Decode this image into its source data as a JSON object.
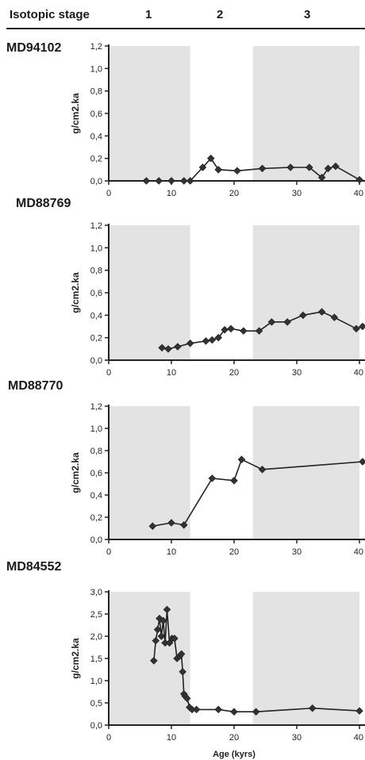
{
  "header": {
    "label": "Isotopic stage",
    "stages": [
      "1",
      "2",
      "3"
    ],
    "stage_bands": [
      [
        0,
        13
      ],
      [
        13,
        23
      ],
      [
        23,
        40
      ]
    ],
    "shaded_stages": [
      "1",
      "3"
    ]
  },
  "colors": {
    "ink": "#222222",
    "shade": "#d9d9d9",
    "marker": "#333333"
  },
  "xlabel": "Age (kyrs)",
  "chart_data": [
    {
      "type": "line",
      "title": "MD94102",
      "ylabel": "g/cm2.ka",
      "xlim": [
        0,
        40
      ],
      "ylim": [
        0,
        1.2
      ],
      "xticks": [
        "0",
        "10",
        "20",
        "30",
        "40"
      ],
      "yticks": [
        "0,0",
        "0,2",
        "0,4",
        "0,6",
        "0,8",
        "1,0",
        "1,2"
      ],
      "series": [
        {
          "x": [
            6,
            8,
            10,
            12,
            13,
            15,
            16.3,
            17.5,
            20.5,
            24.5,
            29,
            32,
            34,
            35,
            36.2,
            40
          ],
          "y": [
            0,
            0,
            0,
            0,
            0,
            0.12,
            0.2,
            0.1,
            0.09,
            0.11,
            0.12,
            0.12,
            0.03,
            0.11,
            0.13,
            0.01
          ]
        }
      ]
    },
    {
      "type": "line",
      "title": "MD88769",
      "ylabel": "g/cm2.ka",
      "xlim": [
        0,
        40
      ],
      "ylim": [
        0,
        1.2
      ],
      "xticks": [
        "0",
        "10",
        "20",
        "30",
        "40"
      ],
      "yticks": [
        "0,0",
        "0,2",
        "0,4",
        "0,6",
        "0,8",
        "1,0",
        "1,2"
      ],
      "series": [
        {
          "x": [
            8.5,
            9.5,
            11,
            13,
            15.5,
            16.5,
            17.5,
            18.5,
            19.5,
            21.5,
            24,
            26,
            28.5,
            31,
            34,
            36,
            39.5,
            40.5
          ],
          "y": [
            0.11,
            0.1,
            0.12,
            0.15,
            0.17,
            0.18,
            0.2,
            0.27,
            0.28,
            0.26,
            0.26,
            0.34,
            0.34,
            0.4,
            0.43,
            0.38,
            0.28,
            0.3
          ]
        }
      ]
    },
    {
      "type": "line",
      "title": "MD88770",
      "ylabel": "g/cm2.ka",
      "xlim": [
        0,
        40
      ],
      "ylim": [
        0,
        1.2
      ],
      "xticks": [
        "0",
        "10",
        "20",
        "30",
        "40"
      ],
      "yticks": [
        "0,0",
        "0,2",
        "0,4",
        "0,6",
        "0,8",
        "1,0",
        "1,2"
      ],
      "series": [
        {
          "x": [
            7,
            10,
            12,
            16.5,
            20,
            21.2,
            24.5,
            40.5
          ],
          "y": [
            0.12,
            0.15,
            0.13,
            0.55,
            0.53,
            0.72,
            0.63,
            0.7
          ]
        }
      ]
    },
    {
      "type": "line",
      "title": "MD84552",
      "ylabel": "g/cm2.ka",
      "xlabel": "Age (kyrs)",
      "xlim": [
        0,
        40
      ],
      "ylim": [
        0,
        3.0
      ],
      "xticks": [
        "0",
        "10",
        "20",
        "30",
        "40"
      ],
      "yticks": [
        "0,0",
        "0,5",
        "1,0",
        "1,5",
        "2,0",
        "2,5",
        "3,0"
      ],
      "series": [
        {
          "x": [
            7.2,
            7.5,
            7.8,
            8.1,
            8.4,
            8.7,
            9.0,
            9.3,
            9.7,
            10.1,
            10.5,
            10.9,
            11.3,
            11.6,
            11.8,
            12.0,
            12.2,
            12.5,
            12.9,
            13.3,
            14,
            17.5,
            20,
            23.5,
            32.5,
            40
          ],
          "y": [
            1.45,
            1.9,
            2.15,
            2.4,
            2.0,
            2.35,
            1.85,
            2.6,
            1.85,
            1.95,
            1.95,
            1.5,
            1.55,
            1.6,
            1.2,
            0.7,
            0.65,
            0.6,
            0.4,
            0.35,
            0.35,
            0.35,
            0.3,
            0.3,
            0.38,
            0.32
          ]
        }
      ]
    }
  ]
}
